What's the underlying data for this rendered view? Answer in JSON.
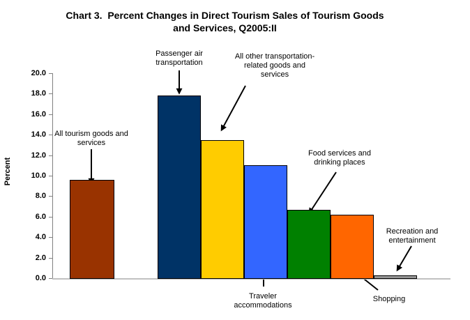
{
  "title": {
    "line1": "Chart 3.  Percent Changes in Direct Tourism Sales of Tourism Goods",
    "line2": "and Services, Q2005:II"
  },
  "chart_data": {
    "type": "bar",
    "title": "Chart 3. Percent Changes in Direct Tourism Sales of Tourism Goods and Services, Q2005:II",
    "title_lines": [
      "Chart 3.  Percent Changes in Direct Tourism Sales of Tourism Goods",
      "and Services, Q2005:II"
    ],
    "xlabel": "",
    "ylabel": "Percent",
    "ylim": [
      0,
      20
    ],
    "ytick_step": 2,
    "ytick_labels": [
      "0.0",
      "2.0",
      "4.0",
      "6.0",
      "8.0",
      "10.0",
      "12.0",
      "14.0",
      "16.0",
      "18.0",
      "20.0"
    ],
    "grid": false,
    "legend": "none",
    "categories": [
      "All tourism goods and services",
      "Passenger air transportation",
      "All other transportation-related goods and services",
      "Traveler accommodations",
      "Food services and drinking places",
      "Shopping",
      "Recreation and entertainment"
    ],
    "values": [
      9.6,
      17.8,
      13.5,
      11.0,
      6.7,
      6.2,
      0.3
    ],
    "colors": [
      "#993300",
      "#003366",
      "#FFCC00",
      "#3366FF",
      "#008000",
      "#FF6600",
      "#999999"
    ],
    "bar_border_color": "#000000",
    "axis_line_color": "#808080",
    "baseline_color": "#c0c0c0",
    "annotations": [
      {
        "label": "All tourism goods and services",
        "lines": [
          "All tourism goods and",
          "services"
        ]
      },
      {
        "label": "Passenger air transportation",
        "lines": [
          "Passenger air",
          "transportation"
        ]
      },
      {
        "label": "All other transportation-related goods and services",
        "lines": [
          "All other transportation-",
          "related goods and",
          "services"
        ]
      },
      {
        "label": "Traveler accommodations",
        "lines": [
          "Traveler",
          "accommodations"
        ]
      },
      {
        "label": "Food services and drinking places",
        "lines": [
          "Food services and",
          "drinking places"
        ]
      },
      {
        "label": "Shopping",
        "lines": [
          "Shopping"
        ]
      },
      {
        "label": "Recreation and entertainment",
        "lines": [
          "Recreation and",
          "entertainment"
        ]
      }
    ]
  }
}
